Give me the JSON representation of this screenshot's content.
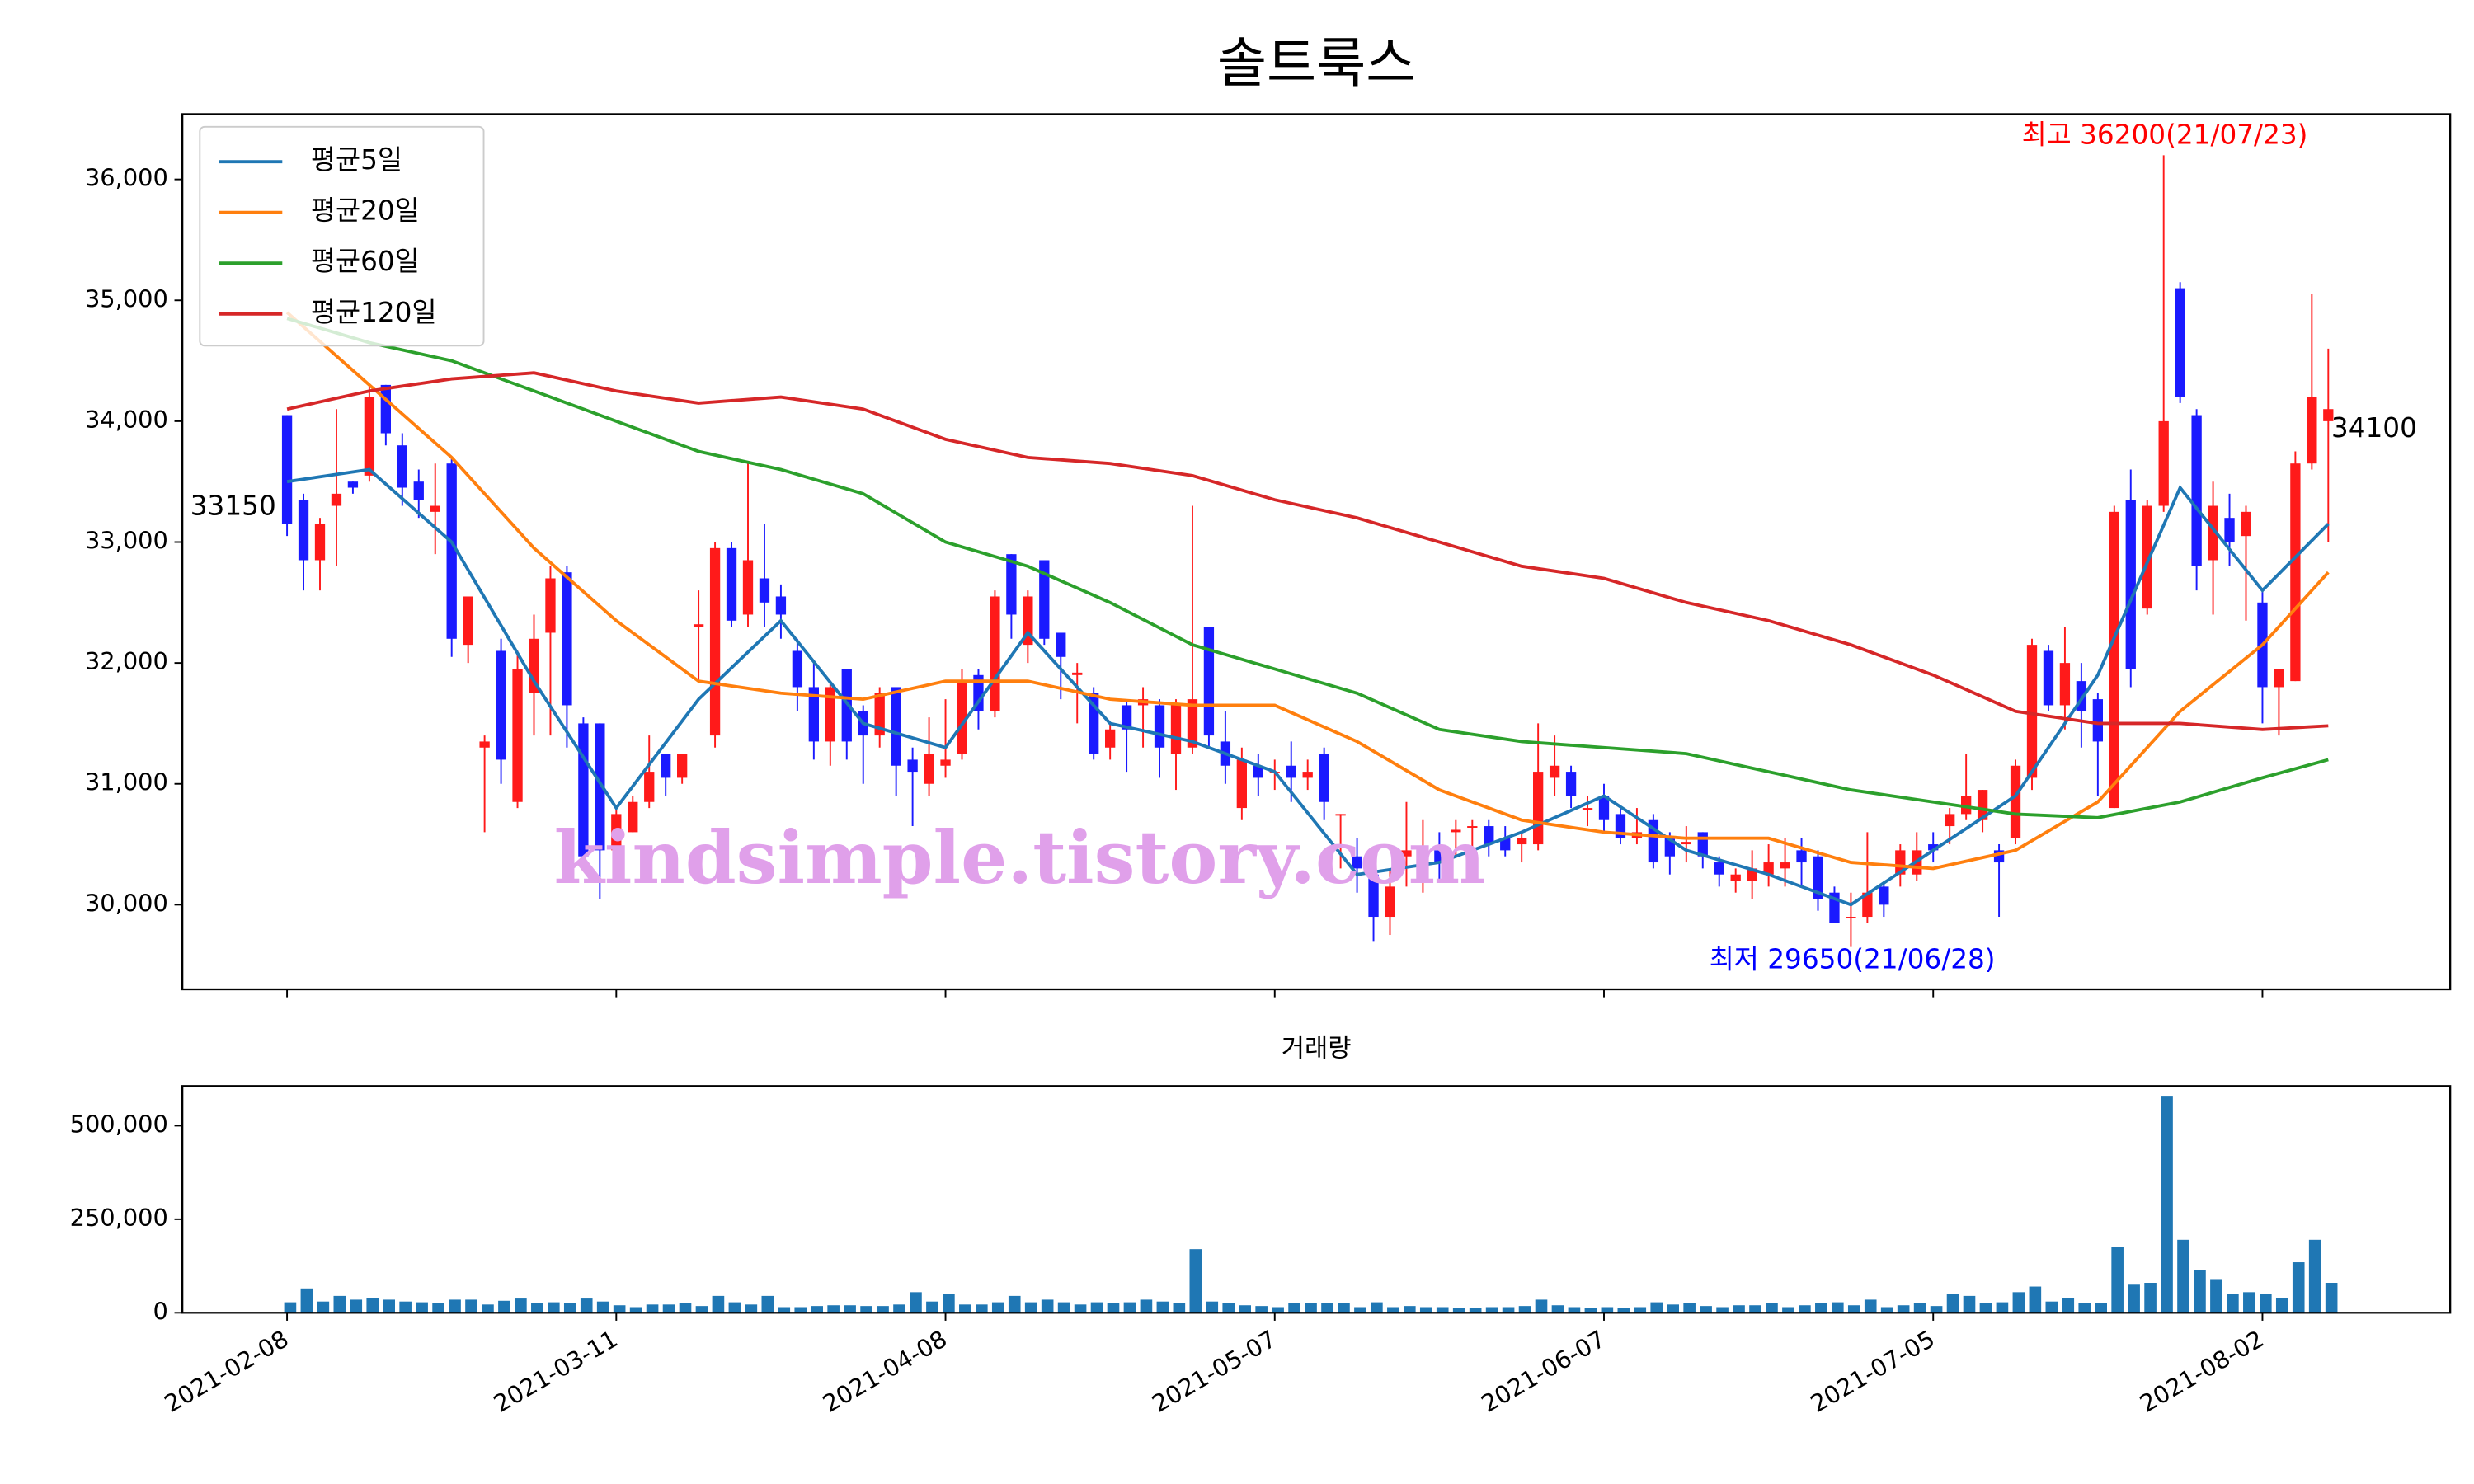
{
  "chart_data": [
    {
      "type": "candlestick",
      "title": "솔트룩스",
      "categories": [
        "2021-02-08",
        null,
        null,
        null,
        null,
        null,
        null,
        null,
        null,
        null,
        null,
        null,
        null,
        null,
        null,
        null,
        null,
        null,
        null,
        null,
        "2021-03-11",
        null,
        null,
        null,
        null,
        null,
        null,
        null,
        null,
        null,
        null,
        null,
        null,
        null,
        null,
        null,
        null,
        null,
        null,
        null,
        "2021-04-08",
        null,
        null,
        null,
        null,
        null,
        null,
        null,
        null,
        null,
        null,
        null,
        null,
        null,
        null,
        null,
        null,
        null,
        null,
        null,
        "2021-05-07",
        null,
        null,
        null,
        null,
        null,
        null,
        null,
        null,
        null,
        null,
        null,
        null,
        null,
        null,
        null,
        null,
        null,
        null,
        null,
        "2021-06-07",
        null,
        null,
        null,
        null,
        null,
        null,
        null,
        null,
        null,
        null,
        null,
        null,
        null,
        null,
        null,
        null,
        null,
        null,
        null,
        "2021-07-05",
        null,
        null,
        null,
        null,
        null,
        null,
        null,
        null,
        null,
        null,
        null,
        null,
        null,
        null,
        null,
        null,
        null,
        null,
        null,
        "2021-08-02",
        null,
        null,
        null,
        null
      ],
      "open": [
        34050,
        33350,
        32850,
        33300,
        33500,
        33550,
        34300,
        33800,
        33500,
        33250,
        33650,
        32150,
        31300,
        32100,
        30850,
        31750,
        32250,
        32750,
        31500,
        31500,
        30450,
        30600,
        30850,
        31250,
        31050,
        32300,
        31400,
        32950,
        32400,
        32700,
        32550,
        32100,
        31800,
        31350,
        31950,
        31600,
        31400,
        31800,
        31200,
        31000,
        31150,
        31250,
        31900,
        31600,
        32900,
        32150,
        32850,
        32250,
        31900,
        31750,
        31300,
        31650,
        31650,
        31650,
        31250,
        31300,
        32300,
        31350,
        30800,
        31150,
        31100,
        31150,
        31050,
        31250,
        30750,
        30400,
        30250,
        29900,
        30400,
        30400,
        30450,
        30600,
        30650,
        30650,
        30550,
        30500,
        30500,
        31050,
        31100,
        30800,
        30900,
        30750,
        30550,
        30700,
        30550,
        30500,
        30600,
        30350,
        30200,
        30200,
        30250,
        30300,
        30450,
        30400,
        30100,
        29900,
        29900,
        30150,
        30250,
        30250,
        30500,
        30650,
        30750,
        30700,
        30450,
        30550,
        31050,
        32100,
        31650,
        31850,
        31700,
        30800,
        33350,
        32450,
        33300,
        35100,
        34050,
        32850,
        33200,
        33050,
        32500,
        31800,
        31850,
        33650,
        34000
      ],
      "high": [
        34050,
        33400,
        33200,
        34100,
        33500,
        34300,
        34300,
        33900,
        33600,
        33650,
        33700,
        32550,
        31400,
        32200,
        32100,
        32400,
        32800,
        32800,
        31550,
        31500,
        30800,
        30900,
        31400,
        31250,
        31250,
        32600,
        33000,
        33000,
        33650,
        33150,
        32650,
        32200,
        32000,
        31850,
        31950,
        31650,
        31800,
        31800,
        31300,
        31550,
        31700,
        31950,
        31950,
        32600,
        32900,
        32600,
        32850,
        32250,
        32000,
        31800,
        31500,
        31700,
        31800,
        31700,
        31700,
        33300,
        32300,
        31600,
        31300,
        31250,
        31200,
        31350,
        31200,
        31300,
        30750,
        30550,
        30350,
        30300,
        30850,
        30700,
        30600,
        30700,
        30700,
        30700,
        30650,
        30600,
        31500,
        31400,
        31150,
        30900,
        31000,
        30800,
        30800,
        30750,
        30600,
        30650,
        30600,
        30400,
        30300,
        30450,
        30500,
        30550,
        30550,
        30450,
        30150,
        30100,
        30600,
        30200,
        30500,
        30600,
        30600,
        30800,
        31250,
        30950,
        30500,
        31200,
        32200,
        32150,
        32300,
        32000,
        31750,
        33300,
        33600,
        33350,
        36200,
        35150,
        34100,
        33500,
        33400,
        33300,
        32600,
        31950,
        33750,
        35050,
        34600
      ],
      "low": [
        33050,
        32600,
        32600,
        32800,
        33400,
        33500,
        33800,
        33300,
        33200,
        32900,
        32050,
        32000,
        30600,
        31000,
        30800,
        31400,
        31400,
        31300,
        30300,
        30050,
        30300,
        30600,
        30800,
        30900,
        31000,
        31850,
        31300,
        32300,
        32300,
        32300,
        32200,
        31600,
        31200,
        31150,
        31200,
        31000,
        31300,
        30900,
        30650,
        30900,
        31050,
        31200,
        31450,
        31550,
        32200,
        32000,
        32150,
        31700,
        31500,
        31200,
        31200,
        31100,
        31300,
        31050,
        30950,
        31250,
        31300,
        31000,
        30700,
        30900,
        30950,
        30850,
        30950,
        30700,
        30300,
        30100,
        29700,
        29750,
        30150,
        30100,
        30200,
        30400,
        30350,
        30400,
        30400,
        30350,
        30450,
        30900,
        30800,
        30650,
        30600,
        30500,
        30500,
        30300,
        30250,
        30350,
        30300,
        30150,
        30100,
        30050,
        30150,
        30150,
        30150,
        29950,
        29850,
        29650,
        29850,
        29900,
        30150,
        30200,
        30350,
        30500,
        30700,
        30600,
        29900,
        30500,
        30950,
        31600,
        31450,
        31300,
        30900,
        30800,
        31800,
        32400,
        33250,
        34150,
        32600,
        32400,
        32800,
        32350,
        31500,
        31400,
        31850,
        33600,
        33000
      ],
      "close": [
        33150,
        32850,
        33150,
        33400,
        33450,
        34200,
        33900,
        33450,
        33350,
        33300,
        32200,
        32550,
        31350,
        31200,
        31950,
        32200,
        32700,
        31650,
        30400,
        30450,
        30750,
        30850,
        31100,
        31050,
        31250,
        32320,
        32950,
        32350,
        32850,
        32500,
        32400,
        31800,
        31350,
        31800,
        31350,
        31400,
        31750,
        31150,
        31100,
        31250,
        31200,
        31850,
        31600,
        32550,
        32400,
        32550,
        32200,
        32050,
        31920,
        31250,
        31450,
        31450,
        31700,
        31300,
        31650,
        31700,
        31400,
        31150,
        31200,
        31050,
        31100,
        31050,
        31100,
        30850,
        30750,
        30300,
        29900,
        30150,
        30450,
        30420,
        30350,
        30620,
        30650,
        30500,
        30450,
        30550,
        31100,
        31150,
        30900,
        30800,
        30700,
        30550,
        30600,
        30350,
        30400,
        30520,
        30400,
        30250,
        30250,
        30300,
        30350,
        30350,
        30350,
        30050,
        29850,
        29900,
        30100,
        30000,
        30450,
        30450,
        30450,
        30750,
        30900,
        30950,
        30350,
        31150,
        32150,
        31650,
        32000,
        31600,
        31350,
        33250,
        31950,
        33300,
        34000,
        34200,
        32800,
        33300,
        33000,
        33250,
        31800,
        31950,
        33650,
        34200,
        34100
      ],
      "up_color": "#ff1a1a",
      "down_color": "#1a1aff",
      "series": [
        {
          "name": "평균5일",
          "color": "#1f77b4",
          "x": [
            0,
            5,
            10,
            15,
            20,
            25,
            30,
            35,
            40,
            45,
            50,
            55,
            60,
            65,
            70,
            75,
            80,
            85,
            90,
            95,
            100,
            105,
            110,
            115,
            120,
            124
          ],
          "values": [
            33500,
            33600,
            33000,
            31850,
            30800,
            31700,
            32350,
            31500,
            31300,
            32250,
            31500,
            31350,
            31100,
            30250,
            30350,
            30600,
            30900,
            30450,
            30250,
            30000,
            30450,
            30900,
            31900,
            33450,
            32600,
            33150
          ]
        },
        {
          "name": "평균20일",
          "color": "#ff7f0e",
          "x": [
            0,
            5,
            10,
            15,
            20,
            25,
            30,
            35,
            40,
            45,
            50,
            55,
            60,
            65,
            70,
            75,
            80,
            85,
            90,
            95,
            100,
            105,
            110,
            115,
            120,
            124
          ],
          "values": [
            34900,
            34300,
            33700,
            32950,
            32350,
            31850,
            31750,
            31700,
            31850,
            31850,
            31700,
            31650,
            31650,
            31350,
            30950,
            30700,
            30600,
            30550,
            30550,
            30350,
            30300,
            30450,
            30850,
            31600,
            32150,
            32750
          ]
        },
        {
          "name": "평균60일",
          "color": "#2ca02c",
          "x": [
            0,
            5,
            10,
            15,
            20,
            25,
            30,
            35,
            40,
            45,
            50,
            55,
            60,
            65,
            70,
            75,
            80,
            85,
            90,
            95,
            100,
            105,
            110,
            115,
            120,
            124
          ],
          "values": [
            34850,
            34650,
            34500,
            34250,
            34000,
            33750,
            33600,
            33400,
            33000,
            32800,
            32500,
            32150,
            31950,
            31750,
            31450,
            31350,
            31300,
            31250,
            31100,
            30950,
            30850,
            30750,
            30720,
            30850,
            31050,
            31200
          ]
        },
        {
          "name": "평균120일",
          "color": "#d62728",
          "x": [
            0,
            5,
            10,
            15,
            20,
            25,
            30,
            35,
            40,
            45,
            50,
            55,
            60,
            65,
            70,
            75,
            80,
            85,
            90,
            95,
            100,
            105,
            110,
            115,
            120,
            124
          ],
          "values": [
            34100,
            34250,
            34350,
            34400,
            34250,
            34150,
            34200,
            34100,
            33850,
            33700,
            33650,
            33550,
            33350,
            33200,
            33000,
            32800,
            32700,
            32500,
            32350,
            32150,
            31900,
            31600,
            31500,
            31500,
            31450,
            31480
          ]
        }
      ],
      "ylim": [
        29300,
        36540
      ],
      "yticks": [
        {
          "value": 30000,
          "label": "30,000"
        },
        {
          "value": 31000,
          "label": "31,000"
        },
        {
          "value": 32000,
          "label": "32,000"
        },
        {
          "value": 33000,
          "label": "33,000"
        },
        {
          "value": 34000,
          "label": "34,000"
        },
        {
          "value": 35000,
          "label": "35,000"
        },
        {
          "value": 36000,
          "label": "36,000"
        }
      ],
      "annotations": [
        {
          "text": "최고 36200(21/07/23)",
          "color": "#ff0000"
        },
        {
          "text": "최저 29650(21/06/28)",
          "color": "#0000ff"
        }
      ],
      "close_labels": [
        33150,
        34100
      ],
      "watermark": "kindsimple.tistory.com",
      "legend": "upper left"
    },
    {
      "type": "bar",
      "title": "거래량",
      "color": "#1f77b4",
      "values": [
        28000,
        65000,
        30000,
        45000,
        35000,
        40000,
        35000,
        30000,
        28000,
        25000,
        35000,
        35000,
        22000,
        32000,
        38000,
        25000,
        28000,
        25000,
        38000,
        30000,
        20000,
        15000,
        22000,
        22000,
        25000,
        18000,
        45000,
        28000,
        22000,
        45000,
        15000,
        15000,
        18000,
        20000,
        20000,
        18000,
        18000,
        22000,
        55000,
        30000,
        50000,
        22000,
        22000,
        28000,
        45000,
        28000,
        35000,
        28000,
        22000,
        28000,
        25000,
        28000,
        35000,
        30000,
        25000,
        170000,
        30000,
        25000,
        20000,
        18000,
        15000,
        25000,
        25000,
        25000,
        25000,
        15000,
        28000,
        15000,
        18000,
        15000,
        15000,
        12000,
        12000,
        15000,
        15000,
        18000,
        35000,
        20000,
        15000,
        12000,
        15000,
        12000,
        15000,
        28000,
        22000,
        25000,
        18000,
        15000,
        20000,
        20000,
        25000,
        15000,
        20000,
        25000,
        28000,
        20000,
        35000,
        15000,
        20000,
        25000,
        18000,
        50000,
        45000,
        25000,
        28000,
        55000,
        70000,
        30000,
        40000,
        25000,
        25000,
        175000,
        75000,
        80000,
        580000,
        195000,
        115000,
        90000,
        50000,
        55000,
        50000,
        40000,
        135000,
        195000,
        80000
      ],
      "ylim": [
        0,
        606000
      ],
      "yticks": [
        0,
        {
          "value": 250000,
          "label": "250,000"
        },
        {
          "value": 500000,
          "label": "500,000"
        }
      ]
    }
  ]
}
